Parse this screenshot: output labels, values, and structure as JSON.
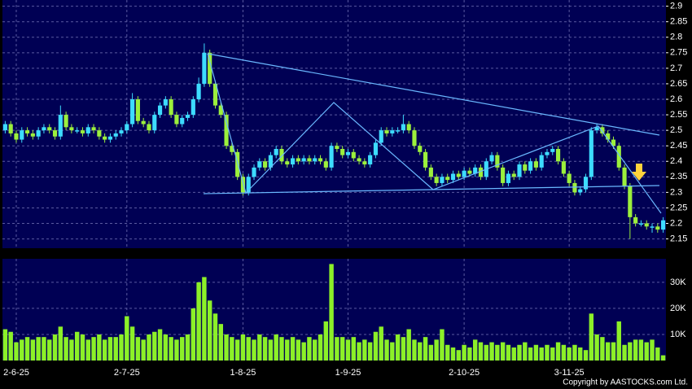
{
  "chart_data": {
    "type": "candlestick",
    "categories": [
      null,
      null,
      "2-6-25",
      null,
      null,
      null,
      null,
      null,
      null,
      null,
      null,
      null,
      null,
      null,
      null,
      null,
      null,
      null,
      null,
      null,
      null,
      null,
      "2-7-25",
      null,
      null,
      null,
      null,
      null,
      null,
      null,
      null,
      null,
      null,
      null,
      null,
      null,
      null,
      null,
      null,
      null,
      null,
      null,
      null,
      "1-8-25",
      null,
      null,
      null,
      null,
      null,
      null,
      null,
      null,
      null,
      null,
      null,
      null,
      null,
      null,
      null,
      null,
      null,
      null,
      "1-9-25",
      null,
      null,
      null,
      null,
      null,
      null,
      null,
      null,
      null,
      null,
      null,
      null,
      null,
      null,
      null,
      null,
      null,
      null,
      null,
      null,
      "2-10-25",
      null,
      null,
      null,
      null,
      null,
      null,
      null,
      null,
      null,
      null,
      null,
      null,
      null,
      null,
      null,
      null,
      null,
      null,
      "3-11-25",
      null,
      null,
      null,
      null,
      null,
      null,
      null,
      null,
      null,
      null,
      null,
      null,
      null,
      null,
      null,
      null,
      null
    ],
    "open": [
      2.5,
      2.52,
      2.49,
      2.47,
      2.5,
      2.49,
      2.48,
      2.5,
      2.51,
      2.5,
      2.48,
      2.55,
      2.51,
      2.5,
      2.5,
      2.49,
      2.51,
      2.5,
      2.48,
      2.47,
      2.48,
      2.49,
      2.5,
      2.52,
      2.6,
      2.53,
      2.52,
      2.5,
      2.55,
      2.58,
      2.6,
      2.55,
      2.52,
      2.54,
      2.55,
      2.6,
      2.65,
      2.75,
      2.65,
      2.58,
      2.55,
      2.45,
      2.43,
      2.35,
      2.3,
      2.35,
      2.38,
      2.4,
      2.38,
      2.42,
      2.44,
      2.4,
      2.39,
      2.41,
      2.4,
      2.41,
      2.4,
      2.41,
      2.4,
      2.38,
      2.45,
      2.44,
      2.42,
      2.43,
      2.41,
      2.4,
      2.39,
      2.42,
      2.46,
      2.5,
      2.49,
      2.5,
      2.5,
      2.52,
      2.5,
      2.45,
      2.43,
      2.38,
      2.35,
      2.33,
      2.35,
      2.34,
      2.36,
      2.35,
      2.37,
      2.36,
      2.38,
      2.35,
      2.4,
      2.42,
      2.38,
      2.33,
      2.36,
      2.35,
      2.39,
      2.37,
      2.4,
      2.38,
      2.42,
      2.43,
      2.44,
      2.4,
      2.36,
      2.33,
      2.3,
      2.31,
      2.35,
      2.5,
      2.51,
      2.49,
      2.47,
      2.45,
      2.38,
      2.32,
      2.22,
      2.2,
      2.2,
      2.19,
      2.19,
      2.18
    ],
    "high": [
      2.53,
      2.53,
      2.5,
      2.51,
      2.51,
      2.5,
      2.51,
      2.52,
      2.52,
      2.51,
      2.58,
      2.56,
      2.52,
      2.51,
      2.51,
      2.52,
      2.52,
      2.51,
      2.49,
      2.49,
      2.5,
      2.51,
      2.53,
      2.62,
      2.61,
      2.54,
      2.53,
      2.56,
      2.59,
      2.61,
      2.61,
      2.56,
      2.55,
      2.56,
      2.61,
      2.67,
      2.78,
      2.76,
      2.66,
      2.59,
      2.56,
      2.46,
      2.44,
      2.36,
      2.36,
      2.39,
      2.41,
      2.41,
      2.43,
      2.45,
      2.45,
      2.41,
      2.42,
      2.42,
      2.42,
      2.42,
      2.42,
      2.42,
      2.41,
      2.46,
      2.46,
      2.45,
      2.44,
      2.44,
      2.42,
      2.41,
      2.43,
      2.47,
      2.51,
      2.51,
      2.51,
      2.51,
      2.55,
      2.53,
      2.51,
      2.46,
      2.44,
      2.39,
      2.36,
      2.36,
      2.36,
      2.37,
      2.37,
      2.38,
      2.38,
      2.39,
      2.39,
      2.41,
      2.43,
      2.43,
      2.39,
      2.37,
      2.37,
      2.4,
      2.4,
      2.41,
      2.41,
      2.43,
      2.44,
      2.45,
      2.45,
      2.41,
      2.37,
      2.34,
      2.32,
      2.36,
      2.51,
      2.52,
      2.52,
      2.5,
      2.48,
      2.46,
      2.39,
      2.33,
      2.23,
      2.21,
      2.21,
      2.2,
      2.2,
      2.22
    ],
    "low": [
      2.49,
      2.48,
      2.46,
      2.46,
      2.48,
      2.47,
      2.47,
      2.49,
      2.49,
      2.47,
      2.47,
      2.5,
      2.49,
      2.49,
      2.48,
      2.48,
      2.49,
      2.47,
      2.46,
      2.46,
      2.47,
      2.48,
      2.49,
      2.51,
      2.52,
      2.51,
      2.49,
      2.49,
      2.54,
      2.57,
      2.54,
      2.51,
      2.51,
      2.53,
      2.54,
      2.59,
      2.64,
      2.64,
      2.57,
      2.54,
      2.44,
      2.42,
      2.34,
      2.29,
      2.29,
      2.34,
      2.37,
      2.37,
      2.37,
      2.41,
      2.39,
      2.38,
      2.38,
      2.39,
      2.39,
      2.39,
      2.39,
      2.39,
      2.37,
      2.37,
      2.43,
      2.41,
      2.41,
      2.4,
      2.39,
      2.38,
      2.38,
      2.41,
      2.45,
      2.48,
      2.48,
      2.49,
      2.49,
      2.49,
      2.44,
      2.42,
      2.37,
      2.34,
      2.32,
      2.32,
      2.33,
      2.33,
      2.34,
      2.34,
      2.35,
      2.35,
      2.34,
      2.34,
      2.39,
      2.37,
      2.32,
      2.32,
      2.34,
      2.34,
      2.36,
      2.36,
      2.37,
      2.37,
      2.41,
      2.42,
      2.39,
      2.35,
      2.32,
      2.29,
      2.29,
      2.3,
      2.34,
      2.49,
      2.48,
      2.46,
      2.44,
      2.37,
      2.31,
      2.15,
      2.19,
      2.19,
      2.18,
      2.17,
      2.17,
      2.17
    ],
    "close": [
      2.52,
      2.49,
      2.47,
      2.5,
      2.49,
      2.48,
      2.5,
      2.51,
      2.5,
      2.48,
      2.55,
      2.51,
      2.5,
      2.5,
      2.49,
      2.51,
      2.5,
      2.48,
      2.47,
      2.48,
      2.49,
      2.5,
      2.52,
      2.6,
      2.53,
      2.52,
      2.5,
      2.55,
      2.58,
      2.6,
      2.55,
      2.52,
      2.54,
      2.55,
      2.6,
      2.65,
      2.75,
      2.65,
      2.58,
      2.55,
      2.45,
      2.43,
      2.35,
      2.3,
      2.35,
      2.38,
      2.4,
      2.38,
      2.42,
      2.44,
      2.4,
      2.39,
      2.41,
      2.4,
      2.41,
      2.4,
      2.41,
      2.4,
      2.38,
      2.45,
      2.44,
      2.42,
      2.43,
      2.41,
      2.4,
      2.39,
      2.42,
      2.46,
      2.5,
      2.49,
      2.5,
      2.5,
      2.52,
      2.5,
      2.45,
      2.43,
      2.38,
      2.35,
      2.33,
      2.35,
      2.34,
      2.36,
      2.35,
      2.37,
      2.36,
      2.38,
      2.35,
      2.4,
      2.42,
      2.38,
      2.33,
      2.36,
      2.35,
      2.39,
      2.37,
      2.4,
      2.38,
      2.42,
      2.43,
      2.44,
      2.4,
      2.36,
      2.33,
      2.3,
      2.31,
      2.35,
      2.5,
      2.51,
      2.49,
      2.47,
      2.45,
      2.38,
      2.32,
      2.22,
      2.2,
      2.2,
      2.19,
      2.19,
      2.18,
      2.21
    ],
    "volume": [
      12000,
      11000,
      7000,
      8000,
      9000,
      8000,
      9000,
      9000,
      8000,
      10000,
      13000,
      9000,
      8000,
      11000,
      10000,
      8000,
      9000,
      10000,
      8000,
      9000,
      9000,
      10000,
      17000,
      13000,
      9000,
      8000,
      10000,
      11000,
      12000,
      10000,
      9000,
      8000,
      9000,
      10000,
      20000,
      30000,
      32000,
      23000,
      18000,
      14000,
      10000,
      9000,
      8000,
      10000,
      9000,
      8000,
      10000,
      9000,
      8000,
      10000,
      9000,
      8000,
      9000,
      8000,
      7000,
      9000,
      8000,
      10000,
      15000,
      37000,
      9000,
      9000,
      8000,
      9000,
      7000,
      8000,
      7000,
      11000,
      13000,
      8000,
      7000,
      10000,
      9000,
      12000,
      8000,
      7000,
      9000,
      6000,
      8000,
      12000,
      6000,
      5000,
      4000,
      6000,
      5000,
      8000,
      7000,
      6000,
      7000,
      6000,
      7000,
      6000,
      5000,
      6000,
      7000,
      5000,
      6000,
      5000,
      6000,
      5000,
      7000,
      6000,
      5000,
      6000,
      5000,
      4000,
      18000,
      10000,
      9000,
      7000,
      7000,
      15000,
      6000,
      7000,
      8000,
      8000,
      7000,
      8000,
      5000,
      2000
    ],
    "ylim": [
      2.12,
      2.92
    ],
    "yticks": [
      2.15,
      2.2,
      2.25,
      2.3,
      2.35,
      2.4,
      2.45,
      2.5,
      2.55,
      2.6,
      2.65,
      2.7,
      2.75,
      2.8,
      2.85,
      2.9
    ],
    "volume_ylim": [
      0,
      39000
    ],
    "volume_yticks": [
      {
        "value": 10000,
        "label": "10K"
      },
      {
        "value": 20000,
        "label": "20K"
      },
      {
        "value": 30000,
        "label": "30K"
      }
    ],
    "up_color": "#3ddcff",
    "down_color": "#9cf03c",
    "volume_color": "#8cf028",
    "grid": true,
    "copyright": "Copyright by AASTOCKS.com Ltd."
  }
}
